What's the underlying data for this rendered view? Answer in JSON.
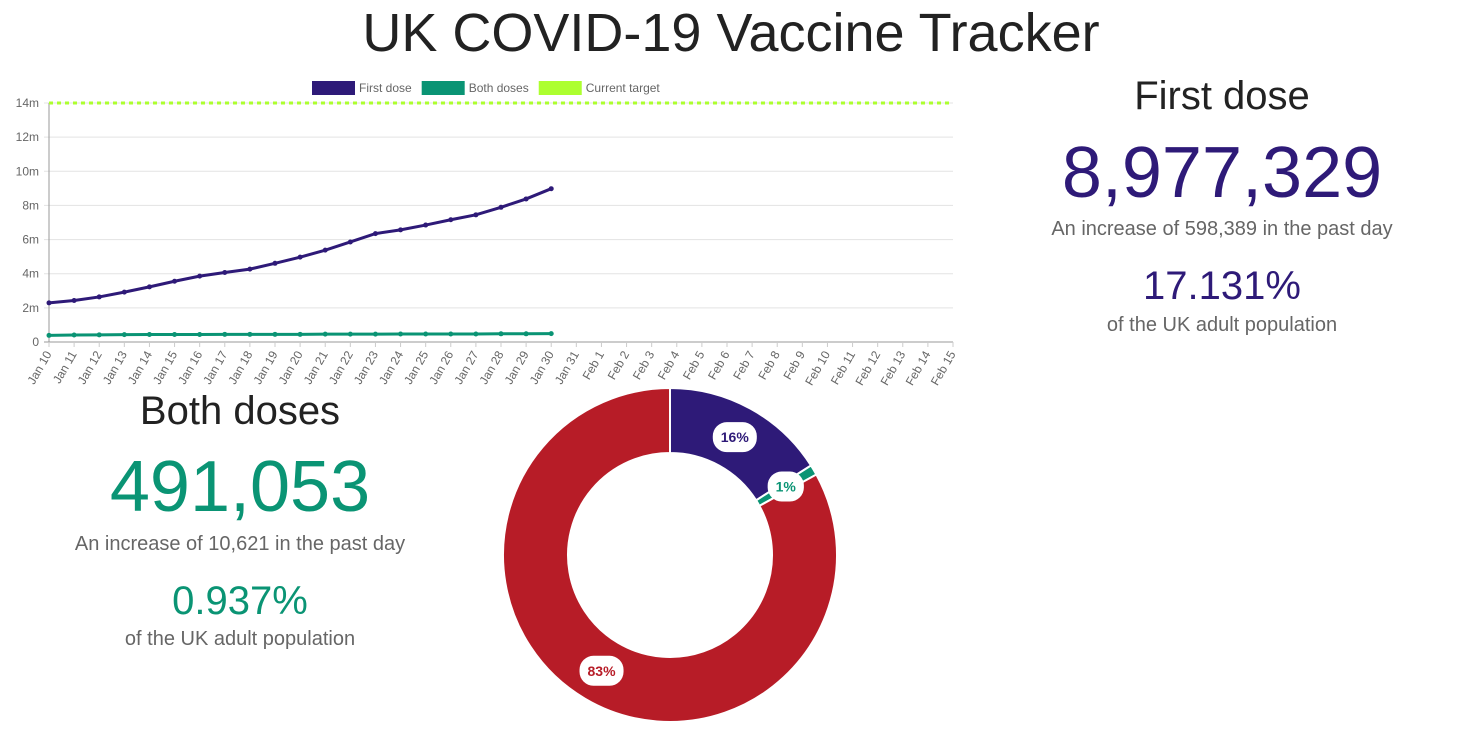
{
  "title": "UK COVID-19 Vaccine Tracker",
  "first_dose": {
    "heading": "First dose",
    "total": "8,977,329",
    "increase": "An increase of 598,389 in the past day",
    "percent": "17.131%",
    "population": "of the UK adult population"
  },
  "both_doses": {
    "heading": "Both doses",
    "total": "491,053",
    "increase": "An increase of 10,621 in the past day",
    "percent": "0.937%",
    "population": "of the UK adult population"
  },
  "chart_data": [
    {
      "type": "line",
      "categories": [
        "Jan 10",
        "Jan 11",
        "Jan 12",
        "Jan 13",
        "Jan 14",
        "Jan 15",
        "Jan 16",
        "Jan 17",
        "Jan 18",
        "Jan 19",
        "Jan 20",
        "Jan 21",
        "Jan 22",
        "Jan 23",
        "Jan 24",
        "Jan 25",
        "Jan 26",
        "Jan 27",
        "Jan 28",
        "Jan 29",
        "Jan 30",
        "Jan 31",
        "Feb 1",
        "Feb 2",
        "Feb 3",
        "Feb 4",
        "Feb 5",
        "Feb 6",
        "Feb 7",
        "Feb 8",
        "Feb 9",
        "Feb 10",
        "Feb 11",
        "Feb 12",
        "Feb 13",
        "Feb 14",
        "Feb 15"
      ],
      "series": [
        {
          "name": "First dose",
          "color": "#2e1a78",
          "values": [
            2.29,
            2.43,
            2.64,
            2.92,
            3.23,
            3.56,
            3.86,
            4.07,
            4.27,
            4.61,
            4.97,
            5.38,
            5.86,
            6.35,
            6.57,
            6.85,
            7.16,
            7.45,
            7.89,
            8.38,
            8.98,
            null,
            null,
            null,
            null,
            null,
            null,
            null,
            null,
            null,
            null,
            null,
            null,
            null,
            null,
            null,
            null
          ]
        },
        {
          "name": "Both doses",
          "color": "#0a9474",
          "values": [
            0.39,
            0.41,
            0.42,
            0.43,
            0.44,
            0.44,
            0.44,
            0.45,
            0.45,
            0.45,
            0.45,
            0.46,
            0.46,
            0.46,
            0.47,
            0.47,
            0.47,
            0.47,
            0.48,
            0.48,
            0.49,
            null,
            null,
            null,
            null,
            null,
            null,
            null,
            null,
            null,
            null,
            null,
            null,
            null,
            null,
            null,
            null
          ]
        },
        {
          "name": "Current target",
          "color": "#adff2f",
          "dashed": true,
          "values": [
            14,
            14,
            14,
            14,
            14,
            14,
            14,
            14,
            14,
            14,
            14,
            14,
            14,
            14,
            14,
            14,
            14,
            14,
            14,
            14,
            14,
            14,
            14,
            14,
            14,
            14,
            14,
            14,
            14,
            14,
            14,
            14,
            14,
            14,
            14,
            14,
            14
          ]
        }
      ],
      "ylim": [
        0,
        14
      ],
      "yticks": [
        0,
        {
          "value": 2,
          "label": "2m"
        },
        {
          "value": 4,
          "label": "4m"
        },
        {
          "value": 6,
          "label": "6m"
        },
        {
          "value": 8,
          "label": "8m"
        },
        {
          "value": 10,
          "label": "10m"
        },
        {
          "value": 12,
          "label": "12m"
        },
        {
          "value": 14,
          "label": "14m"
        }
      ],
      "grid": true,
      "legend": "top"
    },
    {
      "type": "doughnut",
      "values": [
        16,
        1,
        83
      ],
      "value_labels": [
        "16%",
        "1%",
        "83%"
      ],
      "colors": [
        "#2e1a78",
        "#0a9474",
        "#b71c27"
      ]
    }
  ]
}
